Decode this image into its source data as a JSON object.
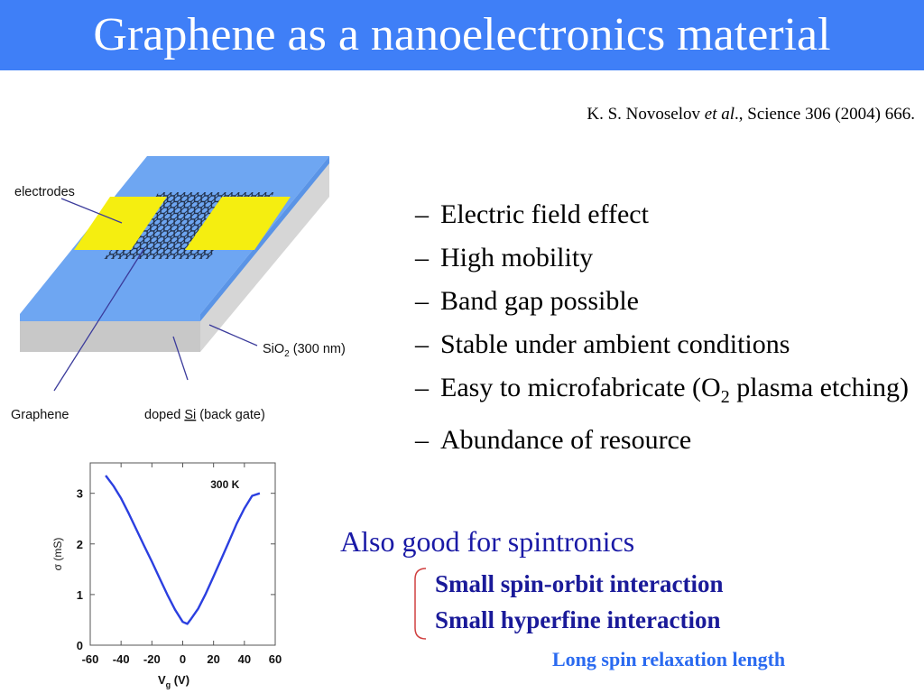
{
  "slide": {
    "title": "Graphene as a nanoelectronics material",
    "citation": {
      "authors": "K. S. Novoselov ",
      "etal": "et al",
      "rest": "., Science 306 (2004) 666."
    }
  },
  "diagram": {
    "labels": {
      "electrodes": "electrodes",
      "sio2_prefix": "SiO",
      "sio2_sub": "2",
      "sio2_suffix": " (300 nm)",
      "graphene": "Graphene",
      "doped_prefix": "doped ",
      "doped_si": "Si",
      "doped_suffix": " (back gate)"
    },
    "colors": {
      "substrate_top": "#6ea6f2",
      "substrate_side": "#c8c8c8",
      "electrode": "#f5ee10",
      "lattice": "#1f2c44"
    }
  },
  "bullets": [
    {
      "text": "Electric field effect"
    },
    {
      "text": "High mobility"
    },
    {
      "text": "Band gap possible"
    },
    {
      "text": "Stable under ambient conditions"
    },
    {
      "text_before": "Easy to microfabricate (O",
      "sub": "2",
      "text_after": " plasma etching)"
    },
    {
      "text": "Abundance of resource"
    }
  ],
  "bullet_marker": "–",
  "spintronics": {
    "heading": "Also good for spintronics",
    "items": [
      "Small spin-orbit interaction",
      "Small hyperfine interaction"
    ],
    "conclusion": "Long spin relaxation length",
    "colors": {
      "heading": "#1a1aa6",
      "items": "#1a1a99",
      "conclusion": "#2a6af0",
      "brace": "#d04040"
    }
  },
  "chart_data": {
    "type": "line",
    "annotation": "300 K",
    "xlabel": "V",
    "xlabel_sub": "g",
    "xlabel_unit": " (V)",
    "ylabel": "σ (mS)",
    "xlim": [
      -60,
      60
    ],
    "ylim": [
      0,
      3.6
    ],
    "xticks": [
      "-60",
      "-40",
      "-20",
      "0",
      "20",
      "40",
      "60"
    ],
    "yticks": [
      "0",
      "1",
      "2",
      "3"
    ],
    "series": [
      {
        "color": "#2b3fe0",
        "x": [
          -50,
          -45,
          -40,
          -35,
          -30,
          -25,
          -20,
          -15,
          -10,
          -5,
          0,
          3,
          5,
          10,
          15,
          20,
          25,
          30,
          35,
          40,
          45,
          50
        ],
        "y": [
          3.35,
          3.15,
          2.9,
          2.6,
          2.28,
          1.96,
          1.65,
          1.32,
          1.0,
          0.7,
          0.46,
          0.42,
          0.5,
          0.72,
          1.02,
          1.36,
          1.7,
          2.05,
          2.4,
          2.7,
          2.95,
          3.0
        ]
      }
    ]
  }
}
